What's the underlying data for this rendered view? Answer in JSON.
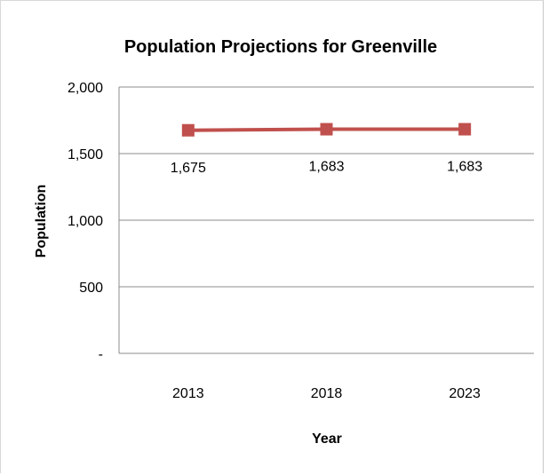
{
  "chart_data": {
    "type": "line",
    "title": "Population Projections for Greenville",
    "xlabel": "Year",
    "ylabel": "Population",
    "categories": [
      "2013",
      "2018",
      "2023"
    ],
    "series": [
      {
        "values": [
          1675,
          1683,
          1683
        ],
        "data_labels": [
          "1,675",
          "1,683",
          "1,683"
        ],
        "color": "#c0504d"
      }
    ],
    "ylim": [
      0,
      2000
    ],
    "y_ticks": [
      {
        "value": 0,
        "label": "-"
      },
      {
        "value": 500,
        "label": "500"
      },
      {
        "value": 1000,
        "label": "1,000"
      },
      {
        "value": 1500,
        "label": "1,500"
      },
      {
        "value": 2000,
        "label": "2,000"
      }
    ],
    "grid": true,
    "legend": "none",
    "gridline_color": "#8c8c8c"
  }
}
